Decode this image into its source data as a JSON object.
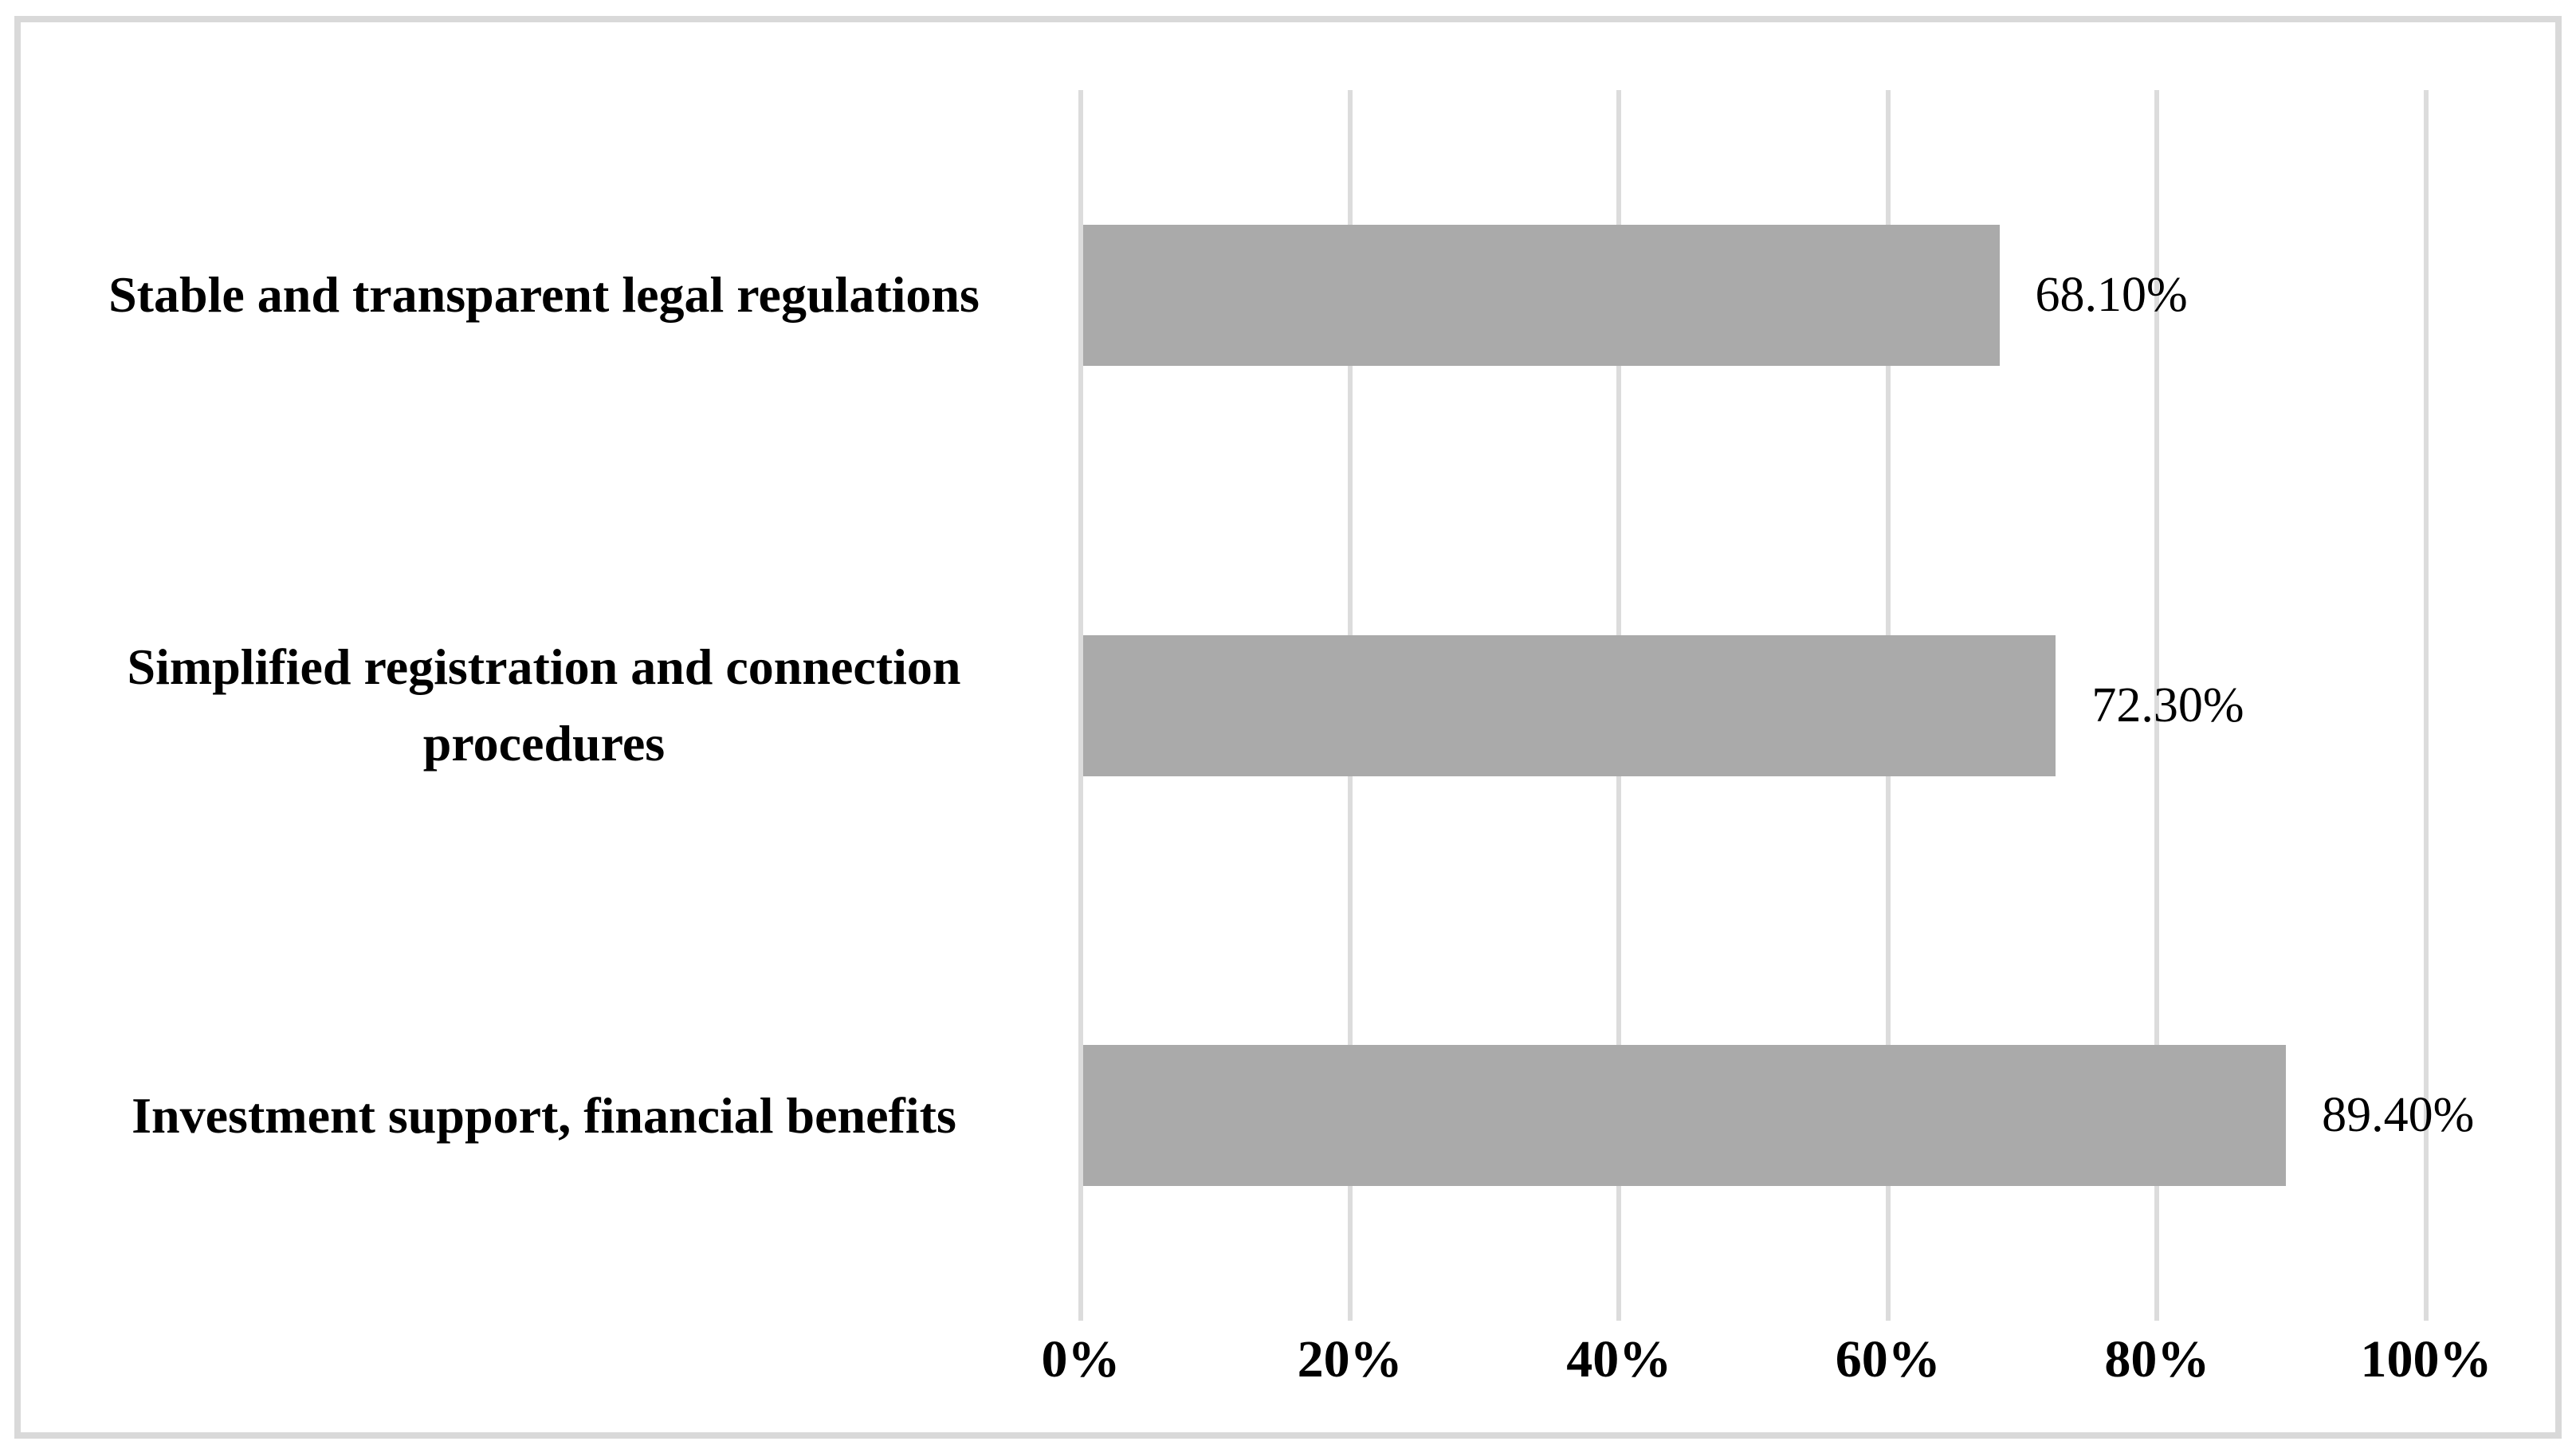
{
  "chart_data": {
    "type": "bar",
    "orientation": "horizontal",
    "title": "",
    "categories": [
      "Stable and transparent legal regulations",
      "Simplified registration and connection procedures",
      "Investment support, financial benefits"
    ],
    "values": [
      68.1,
      72.3,
      89.4
    ],
    "value_labels": [
      "68.10%",
      "72.30%",
      "89.40%"
    ],
    "x_ticks": [
      0,
      20,
      40,
      60,
      80,
      100
    ],
    "x_tick_labels": [
      "0%",
      "20%",
      "40%",
      "60%",
      "80%",
      "100%"
    ],
    "xlim": [
      0,
      100
    ],
    "grid": "vertical-gridlines-only",
    "legend_position": "none",
    "colors": {
      "bar": "#aaaaaa",
      "gridline": "#dcdcdc",
      "figure_border": "#d9d9d9",
      "text": "#000000",
      "background": "#ffffff"
    }
  }
}
